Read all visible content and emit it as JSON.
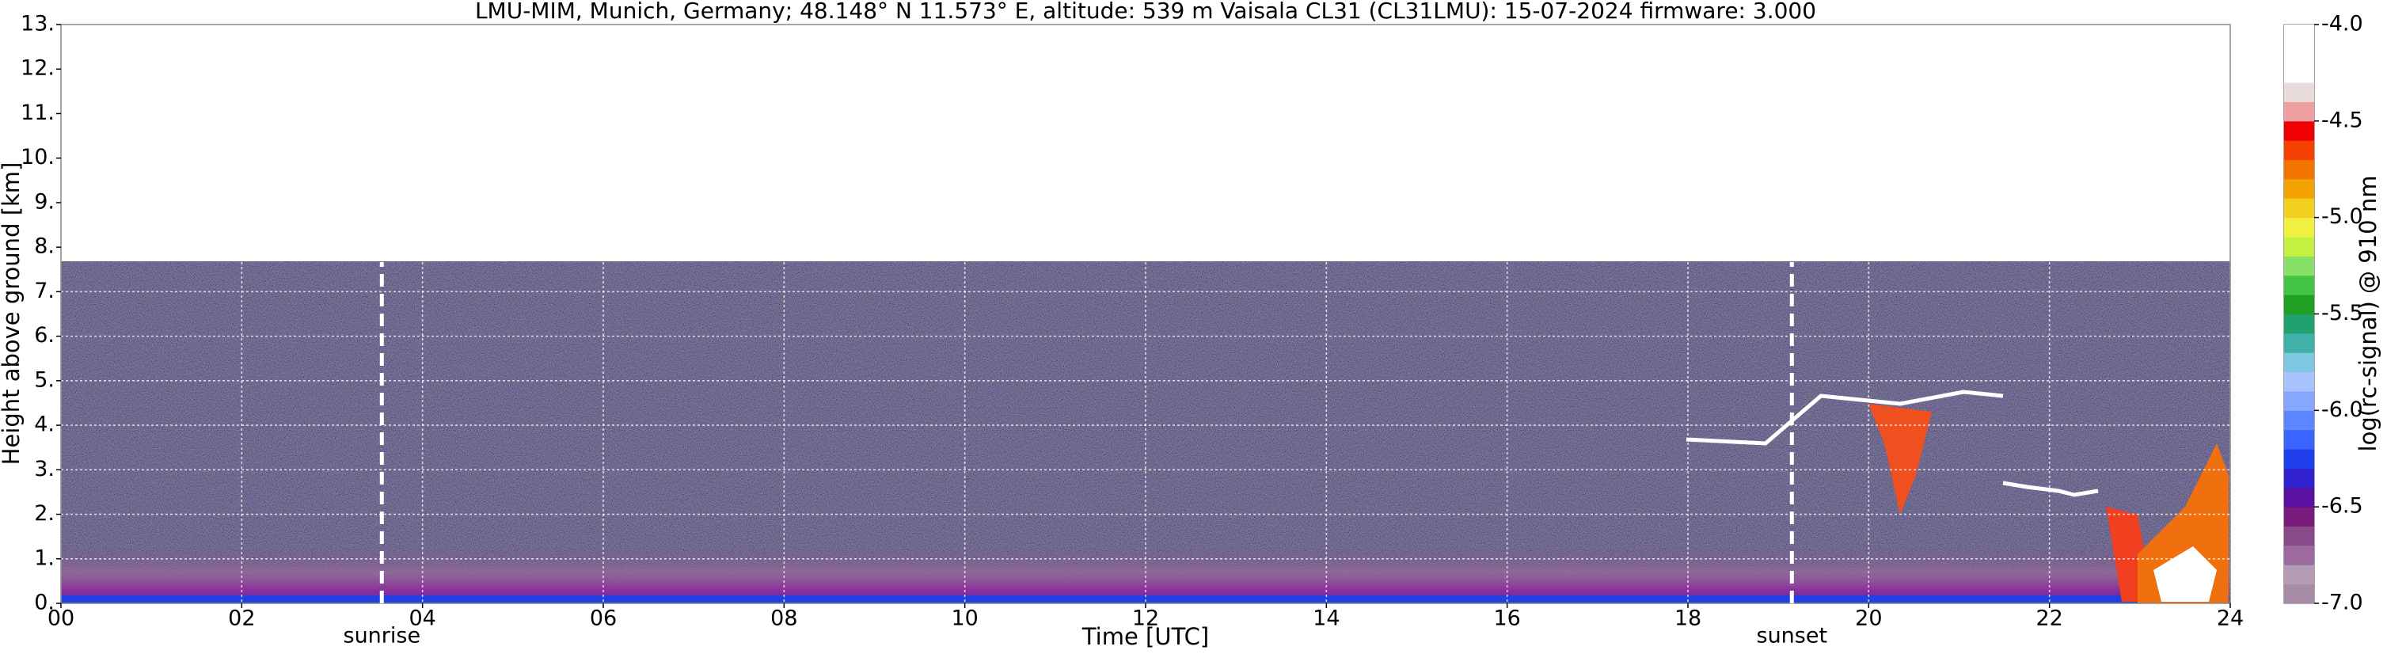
{
  "chart_data": {
    "type": "heatmap",
    "title": "LMU-MIM, Munich, Germany; 48.148° N 11.573° E, altitude: 539 m    Vaisala CL31 (CL31LMU): 15-07-2024    firmware: 3.000",
    "x_label": "Time [UTC]",
    "y_label": "Height above ground [km]",
    "xlim": [
      0,
      24
    ],
    "xticks": [
      {
        "value": 0,
        "label": "00"
      },
      {
        "value": 2,
        "label": "02"
      },
      {
        "value": 4,
        "label": "04"
      },
      {
        "value": 6,
        "label": "06"
      },
      {
        "value": 8,
        "label": "08"
      },
      10,
      12,
      14,
      16,
      18,
      20,
      22,
      24
    ],
    "ylim": [
      0,
      13
    ],
    "yticks": [
      {
        "value": 0,
        "label": "0."
      },
      {
        "value": 1,
        "label": "1."
      },
      {
        "value": 2,
        "label": "2."
      },
      {
        "value": 3,
        "label": "3."
      },
      {
        "value": 4,
        "label": "4."
      },
      {
        "value": 5,
        "label": "5."
      },
      {
        "value": 6,
        "label": "6."
      },
      {
        "value": 7,
        "label": "7."
      },
      {
        "value": 8,
        "label": "8."
      },
      {
        "value": 9,
        "label": "9."
      },
      {
        "value": 10,
        "label": "10."
      },
      {
        "value": 11,
        "label": "11."
      },
      {
        "value": 12,
        "label": "12."
      },
      {
        "value": 13,
        "label": "13."
      }
    ],
    "grid": true,
    "annotations": [
      {
        "label": "sunrise",
        "x": 3.55
      },
      {
        "label": "sunset",
        "x": 19.15
      }
    ],
    "colorbar": {
      "label": "log(rc-signal) @ 910 nm",
      "clim": [
        -7,
        -4
      ],
      "ticks": [
        {
          "value": -4,
          "label": "-4.0"
        },
        -4.5,
        {
          "value": -5,
          "label": "-5.0"
        },
        -5.5,
        {
          "value": -6,
          "label": "-6.0"
        },
        -6.5,
        {
          "value": -7,
          "label": "-7.0"
        }
      ],
      "colors": [
        "#a68ca6",
        "#b39bb3",
        "#9c6a9c",
        "#8a4a8a",
        "#7a1a7a",
        "#5a10a0",
        "#3020d0",
        "#2040f0",
        "#3a66ff",
        "#5c86ff",
        "#86a6ff",
        "#a8c4ff",
        "#7cc8e0",
        "#40b0a8",
        "#20a070",
        "#20a020",
        "#44c444",
        "#88e066",
        "#c4f040",
        "#f0f040",
        "#f4d020",
        "#f4a400",
        "#f47400",
        "#f44000",
        "#f00000",
        "#f0a0a0",
        "#e8dcdc",
        "#ffffff",
        "#ffffff",
        "#ffffff"
      ]
    }
  }
}
